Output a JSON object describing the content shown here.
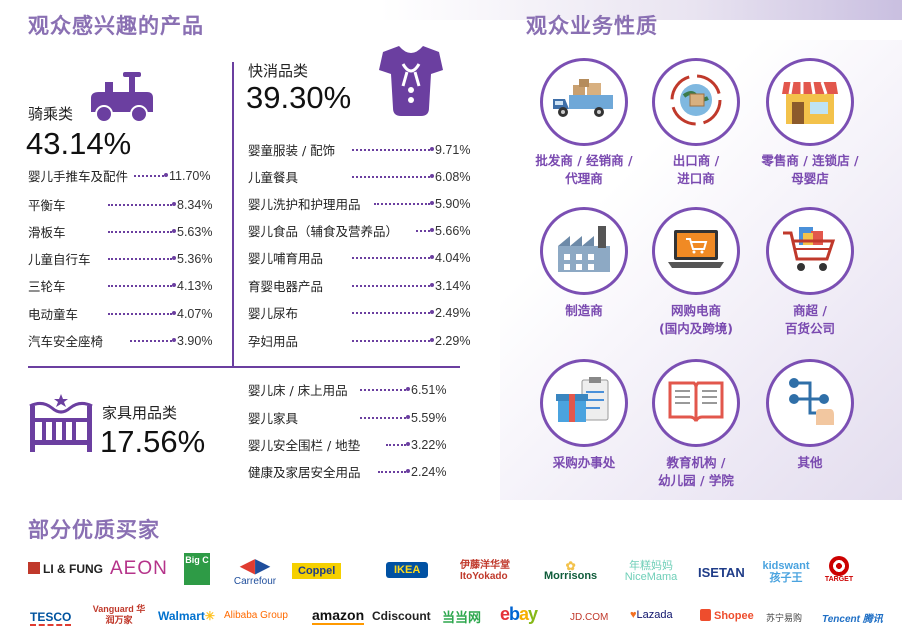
{
  "left": {
    "section_title": "观众感兴趣的产品",
    "rides": {
      "name": "骑乘类",
      "percent": "43.14%",
      "items": [
        {
          "label": "婴儿手推车及配件",
          "value": "11.70%"
        },
        {
          "label": "平衡车",
          "value": "8.34%"
        },
        {
          "label": "滑板车",
          "value": "5.63%"
        },
        {
          "label": "儿童自行车",
          "value": "5.36%"
        },
        {
          "label": "三轮车",
          "value": "4.13%"
        },
        {
          "label": "电动童车",
          "value": "4.07%"
        },
        {
          "label": "汽车安全座椅",
          "value": "3.90%"
        }
      ]
    },
    "fmcg": {
      "name": "快消品类",
      "percent": "39.30%",
      "items": [
        {
          "label": "婴童服装 / 配饰",
          "value": "9.71%"
        },
        {
          "label": "儿童餐具",
          "value": "6.08%"
        },
        {
          "label": "婴儿洗护和护理用品",
          "value": "5.90%"
        },
        {
          "label": "婴儿食品（辅食及营养品）",
          "value": "5.66%"
        },
        {
          "label": "婴儿哺育用品",
          "value": "4.04%"
        },
        {
          "label": "育婴电器产品",
          "value": "3.14%"
        },
        {
          "label": "婴儿尿布",
          "value": "2.49%"
        },
        {
          "label": "孕妇用品",
          "value": "2.29%"
        }
      ]
    },
    "furniture": {
      "name": "家具用品类",
      "percent": "17.56%",
      "items": [
        {
          "label": "婴儿床 / 床上用品",
          "value": "6.51%"
        },
        {
          "label": "婴儿家具",
          "value": "5.59%"
        },
        {
          "label": "婴儿安全围栏 / 地垫",
          "value": "3.22%"
        },
        {
          "label": "健康及家居安全用品",
          "value": "2.24%"
        }
      ]
    }
  },
  "right": {
    "section_title": "观众业务性质",
    "items": [
      {
        "icon": "truck-icon",
        "l1": "批发商 / 经销商 /",
        "l2": "代理商"
      },
      {
        "icon": "globe-box-icon",
        "l1": "出口商 /",
        "l2": "进口商"
      },
      {
        "icon": "store-icon",
        "l1": "零售商 / 连锁店 /",
        "l2": "母婴店"
      },
      {
        "icon": "factory-icon",
        "l1": "制造商",
        "l2": ""
      },
      {
        "icon": "laptop-cart-icon",
        "l1": "网购电商",
        "l2": "(国内及跨境)"
      },
      {
        "icon": "shopping-cart-icon",
        "l1": "商超 /",
        "l2": "百货公司"
      },
      {
        "icon": "gift-clipboard-icon",
        "l1": "采购办事处",
        "l2": ""
      },
      {
        "icon": "book-icon",
        "l1": "教育机构 /",
        "l2": "幼儿园 / 学院"
      },
      {
        "icon": "network-hand-icon",
        "l1": "其他",
        "l2": ""
      }
    ]
  },
  "buyers": {
    "section_title": "部分优质买家",
    "row1": [
      "LI & FUNG",
      "AEON",
      "Big C",
      "Carrefour",
      "Coppel",
      "IKEA",
      "伊藤洋华堂 ItoYokado",
      "Morrisons",
      "年糕妈妈 NiceMama",
      "ISETAN",
      "kidswant 孩子王",
      "TARGET"
    ],
    "row2": [
      "TESCO",
      "Vanguard 华润万家",
      "Walmart",
      "Alibaba Group",
      "amazon",
      "Cdiscount",
      "当当网",
      "ebay",
      "JD.COM",
      "Lazada",
      "Shopee",
      "苏宁易购",
      "Tencent 腾讯"
    ]
  },
  "colors": {
    "accent": "#7b4fb3",
    "title": "#8a70b3",
    "dots": "#6b3fa0"
  }
}
